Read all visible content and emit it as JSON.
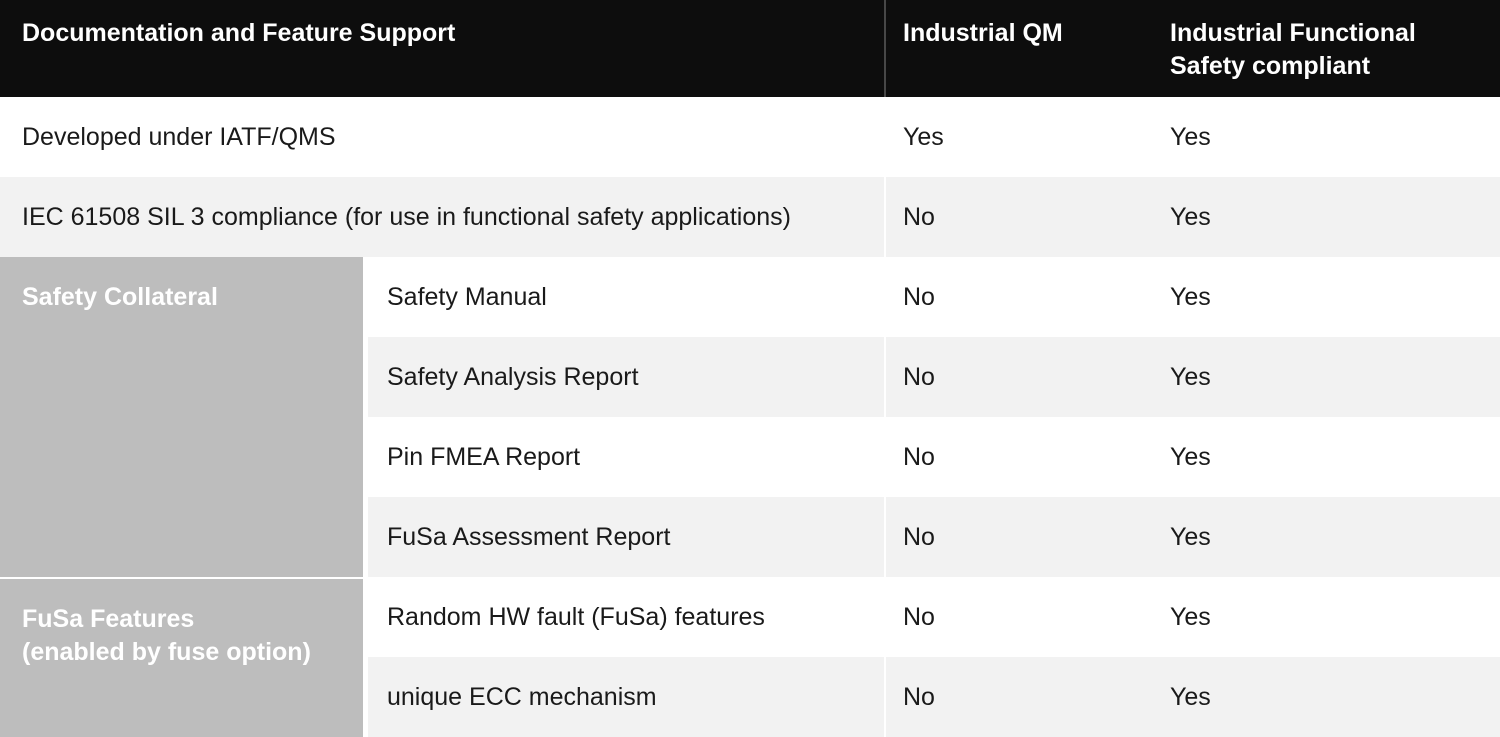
{
  "table": {
    "header": {
      "feature_col": "Documentation and Feature Support",
      "qm_col": "Industrial QM",
      "fs_col": "Industrial Functional Safety compliant",
      "fs_col_lines": [
        "Industrial Functional",
        "Safety compliant"
      ]
    },
    "rows": [
      {
        "type": "simple",
        "label": "Developed under IATF/QMS",
        "qm": "Yes",
        "fs": "Yes"
      },
      {
        "type": "simple",
        "label": "IEC 61508 SIL 3 compliance (for use in functional safety applications)",
        "qm": "No",
        "fs": "Yes"
      },
      {
        "type": "group",
        "group_label": "Safety Collateral",
        "group_label_lines": [
          "Safety Collateral"
        ],
        "items": [
          {
            "label": "Safety Manual",
            "qm": "No",
            "fs": "Yes"
          },
          {
            "label": "Safety Analysis Report",
            "qm": "No",
            "fs": "Yes"
          },
          {
            "label": "Pin FMEA Report",
            "qm": "No",
            "fs": "Yes"
          },
          {
            "label": "FuSa Assessment Report",
            "qm": "No",
            "fs": "Yes"
          }
        ]
      },
      {
        "type": "group",
        "group_label": "FuSa Features (enabled by fuse option)",
        "group_label_lines": [
          "FuSa Features",
          "(enabled by fuse option)"
        ],
        "items": [
          {
            "label": "Random HW fault (FuSa) features",
            "qm": "No",
            "fs": "Yes"
          },
          {
            "label": "unique ECC mechanism",
            "qm": "No",
            "fs": "Yes"
          }
        ]
      }
    ],
    "colors": {
      "header_bg": "#0d0d0d",
      "header_text": "#ffffff",
      "row_bg": "#ffffff",
      "row_alt_bg": "#f2f2f2",
      "group_cell_bg": "#bdbdbd",
      "group_cell_text": "#ffffff",
      "body_text": "#1a1a1a",
      "header_divider": "#474747",
      "cell_divider": "#ffffff"
    }
  }
}
